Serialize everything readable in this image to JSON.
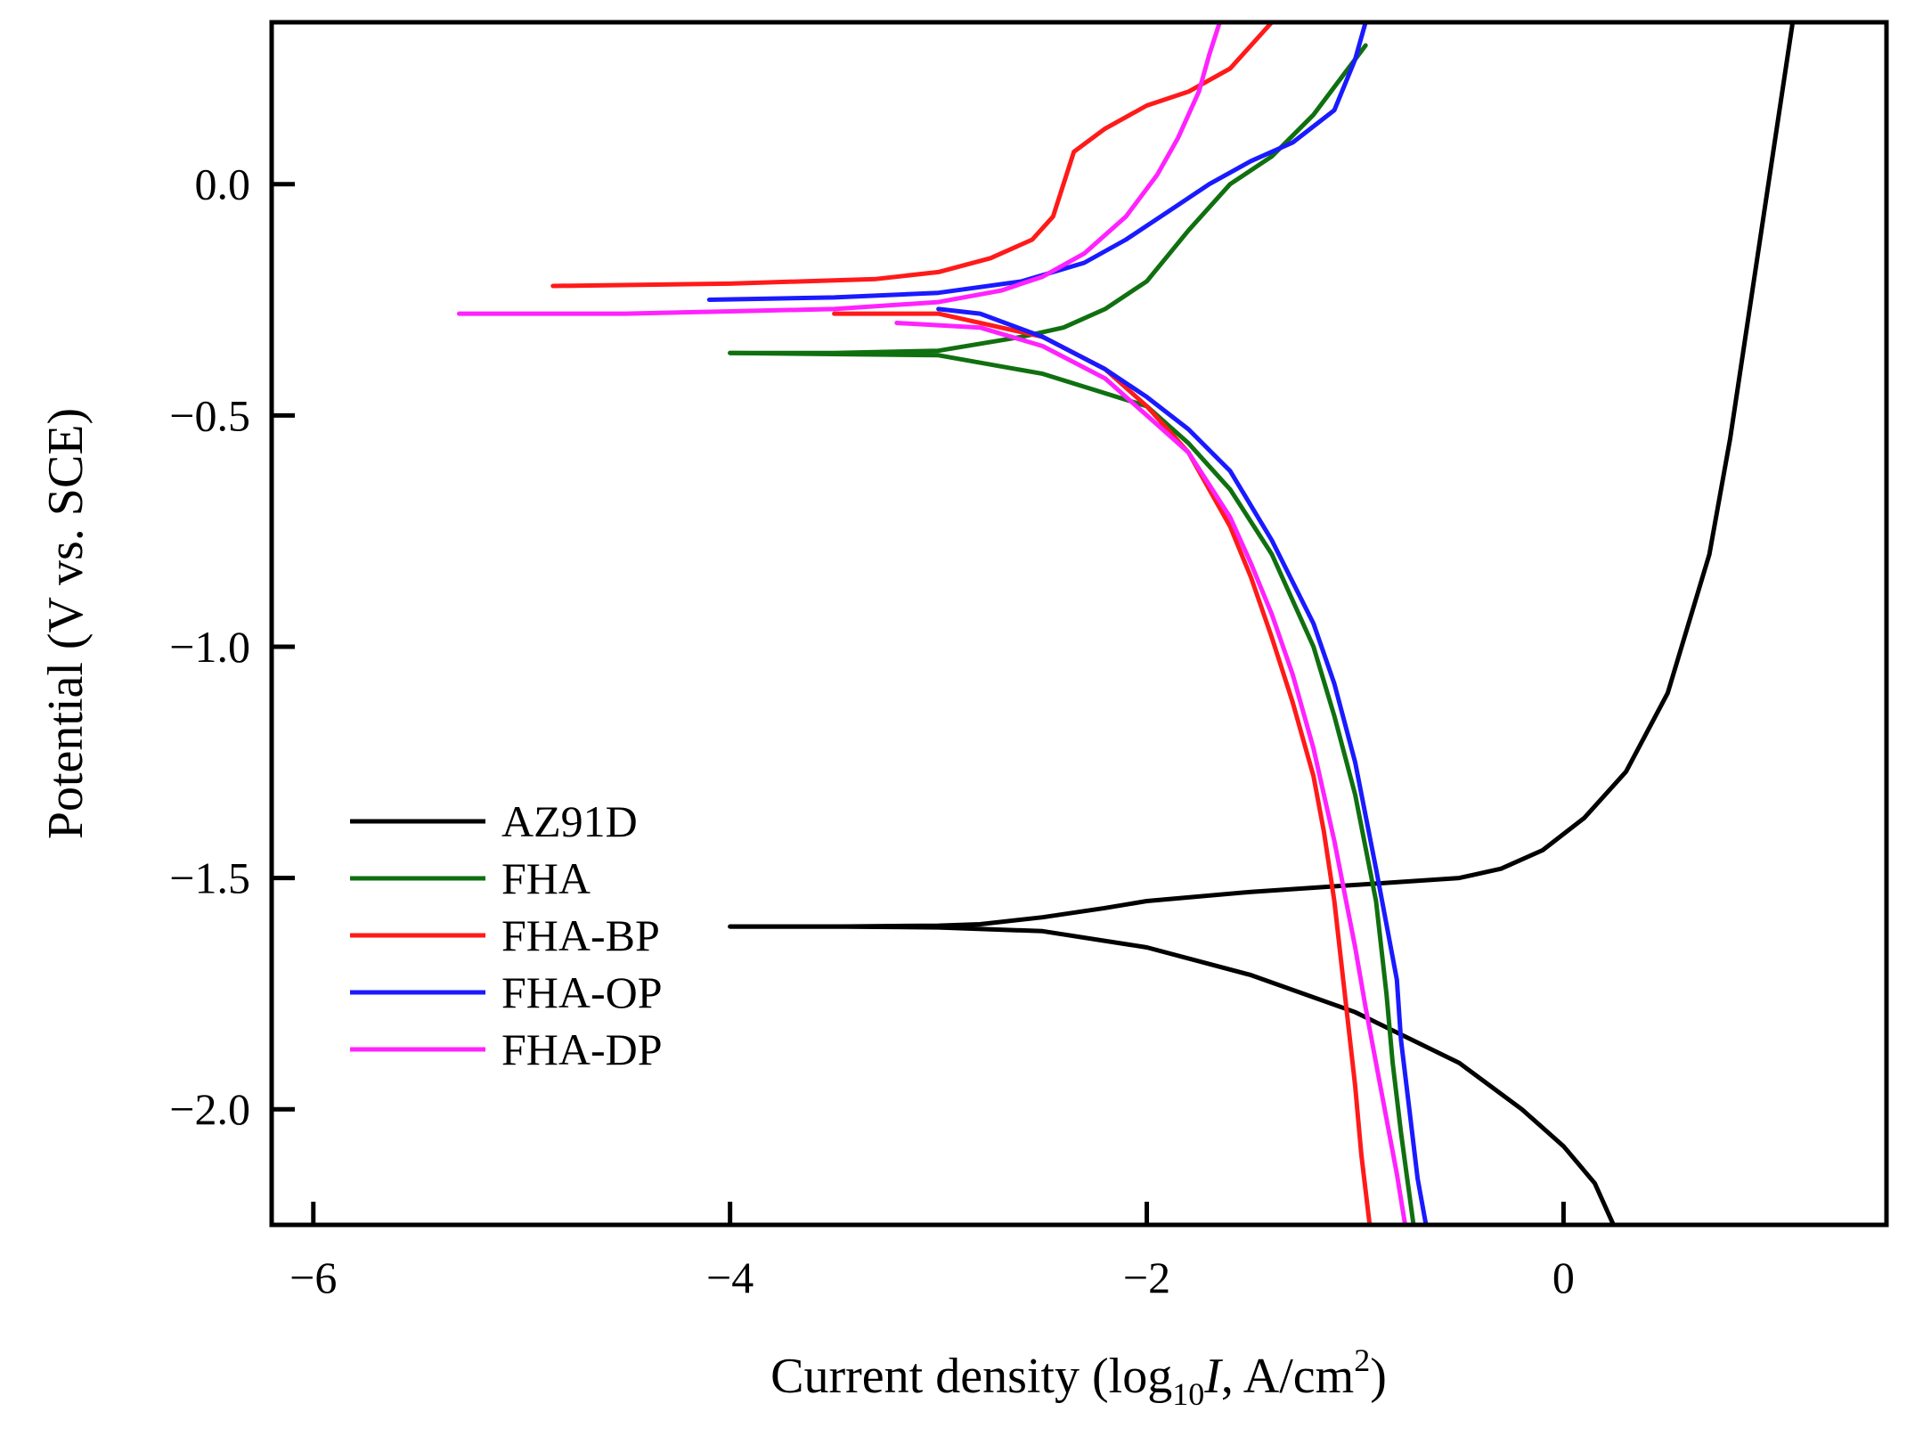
{
  "chart_data": {
    "type": "line",
    "xlabel": {
      "main": "Current density (log",
      "sub": "10",
      "italic": "I",
      "unit": ", A/cm",
      "sup": "2",
      "close": ")"
    },
    "ylabel": "Potential (V vs. SCE)",
    "xlim": [
      -6.2,
      1.55
    ],
    "ylim": [
      -2.25,
      0.35
    ],
    "xticks": [
      -6,
      -4,
      -2,
      0
    ],
    "xtick_labels": [
      "−6",
      "−4",
      "−2",
      "0"
    ],
    "yticks": [
      0.0,
      -0.5,
      -1.0,
      -1.5,
      -2.0
    ],
    "ytick_labels": [
      "0.0",
      "−0.5",
      "−1.0",
      "−1.5",
      "−2.0"
    ],
    "legend_position": "bottom-left",
    "series": [
      {
        "name": "AZ91D",
        "color": "#000000",
        "branches": [
          {
            "x": [
              -4.0,
              -3.5,
              -3.0,
              -2.8,
              -2.5,
              -2.2,
              -2.0,
              -1.5,
              -1.0,
              -0.5,
              -0.3,
              -0.1,
              0.1,
              0.3,
              0.5,
              0.7,
              0.8,
              0.9,
              1.0,
              1.05,
              1.1
            ],
            "y": [
              -1.605,
              -1.605,
              -1.603,
              -1.6,
              -1.585,
              -1.565,
              -1.55,
              -1.53,
              -1.515,
              -1.5,
              -1.48,
              -1.44,
              -1.37,
              -1.27,
              -1.1,
              -0.8,
              -0.55,
              -0.25,
              0.05,
              0.2,
              0.35
            ]
          },
          {
            "x": [
              -4.0,
              -3.5,
              -3.0,
              -2.5,
              -2.0,
              -1.5,
              -1.0,
              -0.5,
              -0.2,
              0.0,
              0.15,
              0.24
            ],
            "y": [
              -1.605,
              -1.605,
              -1.607,
              -1.615,
              -1.65,
              -1.71,
              -1.79,
              -1.9,
              -2.0,
              -2.08,
              -2.16,
              -2.25
            ]
          }
        ]
      },
      {
        "name": "FHA",
        "color": "#107010",
        "branches": [
          {
            "x": [
              -4.0,
              -3.5,
              -3.0,
              -2.6,
              -2.4,
              -2.2,
              -2.0,
              -1.8,
              -1.6,
              -1.4,
              -1.2,
              -1.0,
              -0.95
            ],
            "y": [
              -0.365,
              -0.365,
              -0.36,
              -0.33,
              -0.31,
              -0.27,
              -0.21,
              -0.1,
              0.0,
              0.06,
              0.15,
              0.27,
              0.3
            ]
          },
          {
            "x": [
              -4.0,
              -3.0,
              -2.5,
              -2.0,
              -1.8,
              -1.6,
              -1.4,
              -1.2,
              -1.1,
              -1.0,
              -0.9,
              -0.85,
              -0.82,
              -0.78,
              -0.75,
              -0.72
            ],
            "y": [
              -0.365,
              -0.37,
              -0.41,
              -0.48,
              -0.56,
              -0.66,
              -0.8,
              -1.0,
              -1.15,
              -1.32,
              -1.55,
              -1.75,
              -1.9,
              -2.05,
              -2.15,
              -2.25
            ]
          }
        ]
      },
      {
        "name": "FHA-BP",
        "color": "#ff1a1a",
        "branches": [
          {
            "x": [
              -4.85,
              -4.0,
              -3.3,
              -3.0,
              -2.75,
              -2.55,
              -2.45,
              -2.4,
              -2.35,
              -2.2,
              -2.0,
              -1.8,
              -1.6,
              -1.5,
              -1.4
            ],
            "y": [
              -0.22,
              -0.215,
              -0.205,
              -0.19,
              -0.16,
              -0.12,
              -0.07,
              0.0,
              0.07,
              0.12,
              0.17,
              0.2,
              0.25,
              0.3,
              0.35
            ]
          },
          {
            "x": [
              -3.5,
              -3.0,
              -2.5,
              -2.2,
              -2.0,
              -1.8,
              -1.6,
              -1.5,
              -1.4,
              -1.3,
              -1.2,
              -1.15,
              -1.1,
              -1.05,
              -1.0,
              -0.97,
              -0.93
            ],
            "y": [
              -0.28,
              -0.28,
              -0.33,
              -0.4,
              -0.48,
              -0.58,
              -0.74,
              -0.85,
              -0.98,
              -1.12,
              -1.28,
              -1.4,
              -1.55,
              -1.75,
              -1.95,
              -2.1,
              -2.25
            ]
          }
        ]
      },
      {
        "name": "FHA-OP",
        "color": "#1a1aff",
        "branches": [
          {
            "x": [
              -4.1,
              -3.5,
              -3.0,
              -2.6,
              -2.3,
              -2.1,
              -1.9,
              -1.7,
              -1.5,
              -1.3,
              -1.1,
              -1.0,
              -0.95
            ],
            "y": [
              -0.25,
              -0.245,
              -0.235,
              -0.21,
              -0.17,
              -0.12,
              -0.06,
              0.0,
              0.05,
              0.09,
              0.16,
              0.27,
              0.35
            ]
          },
          {
            "x": [
              -3.0,
              -2.8,
              -2.5,
              -2.2,
              -2.0,
              -1.8,
              -1.6,
              -1.4,
              -1.2,
              -1.1,
              -1.0,
              -0.9,
              -0.8,
              -0.78,
              -0.74,
              -0.7,
              -0.66
            ],
            "y": [
              -0.27,
              -0.28,
              -0.33,
              -0.4,
              -0.46,
              -0.53,
              -0.62,
              -0.77,
              -0.95,
              -1.08,
              -1.25,
              -1.48,
              -1.72,
              -1.85,
              -2.0,
              -2.15,
              -2.25
            ]
          }
        ]
      },
      {
        "name": "FHA-DP",
        "color": "#ff22ff",
        "branches": [
          {
            "x": [
              -5.3,
              -4.5,
              -4.0,
              -3.5,
              -3.0,
              -2.7,
              -2.5,
              -2.3,
              -2.1,
              -1.95,
              -1.85,
              -1.75,
              -1.7,
              -1.65
            ],
            "y": [
              -0.28,
              -0.28,
              -0.275,
              -0.27,
              -0.255,
              -0.23,
              -0.2,
              -0.15,
              -0.07,
              0.02,
              0.1,
              0.2,
              0.28,
              0.35
            ]
          },
          {
            "x": [
              -3.2,
              -2.8,
              -2.5,
              -2.2,
              -2.0,
              -1.8,
              -1.6,
              -1.5,
              -1.4,
              -1.3,
              -1.2,
              -1.1,
              -1.0,
              -0.95,
              -0.9,
              -0.85,
              -0.8,
              -0.76
            ],
            "y": [
              -0.3,
              -0.31,
              -0.35,
              -0.42,
              -0.5,
              -0.58,
              -0.72,
              -0.82,
              -0.93,
              -1.06,
              -1.22,
              -1.42,
              -1.65,
              -1.78,
              -1.9,
              -2.02,
              -2.14,
              -2.25
            ]
          }
        ]
      }
    ]
  }
}
